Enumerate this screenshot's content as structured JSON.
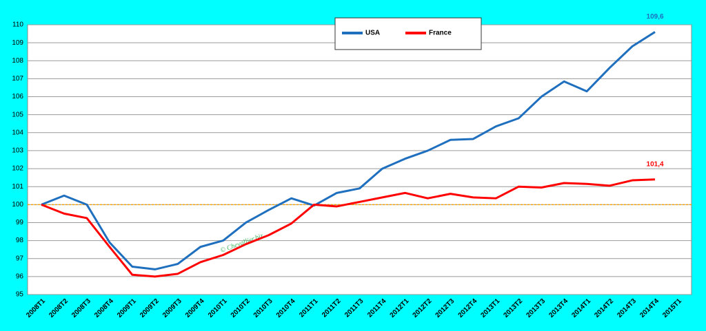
{
  "chart_data": {
    "type": "line",
    "categories": [
      "2008T1",
      "2008T2",
      "2008T3",
      "2008T4",
      "2009T1",
      "2009T2",
      "2009T3",
      "2009T4",
      "2010T1",
      "2010T2",
      "2010T3",
      "2010T4",
      "2011T1",
      "2011T2",
      "2011T3",
      "2011T4",
      "2012T1",
      "2012T2",
      "2012T3",
      "2012T4",
      "2013T1",
      "2013T2",
      "2013T3",
      "2013T4",
      "2014T1",
      "2014T2",
      "2014T3",
      "2014T4",
      "2015T1"
    ],
    "series": [
      {
        "name": "USA",
        "color": "#1f6fbf",
        "values": [
          100.0,
          100.5,
          100.0,
          97.9,
          96.55,
          96.4,
          96.7,
          97.65,
          98.0,
          99.0,
          99.7,
          100.35,
          99.95,
          100.65,
          100.9,
          102.0,
          102.55,
          103.0,
          103.6,
          103.65,
          104.35,
          104.8,
          106.0,
          106.85,
          106.3,
          107.6,
          108.8,
          109.6,
          null
        ],
        "value_labels": [
          null,
          null,
          null,
          null,
          null,
          null,
          null,
          null,
          null,
          null,
          null,
          null,
          null,
          null,
          null,
          null,
          null,
          null,
          null,
          null,
          null,
          null,
          null,
          null,
          null,
          null,
          null,
          "109,6",
          null
        ]
      },
      {
        "name": "France",
        "color": "#ff0000",
        "values": [
          100.0,
          99.5,
          99.25,
          97.65,
          96.1,
          96.0,
          96.15,
          96.8,
          97.2,
          97.8,
          98.3,
          98.95,
          100.0,
          99.9,
          100.15,
          100.4,
          100.65,
          100.35,
          100.6,
          100.4,
          100.35,
          101.0,
          100.95,
          101.2,
          101.15,
          101.05,
          101.35,
          101.4,
          null
        ],
        "value_labels": [
          null,
          null,
          null,
          null,
          null,
          null,
          null,
          null,
          null,
          null,
          null,
          null,
          null,
          null,
          null,
          null,
          null,
          null,
          null,
          null,
          null,
          null,
          null,
          null,
          null,
          null,
          null,
          "101,4",
          null
        ]
      }
    ],
    "ylim": [
      95,
      110
    ],
    "yticks": [
      95,
      96,
      97,
      98,
      99,
      100,
      101,
      102,
      103,
      104,
      105,
      106,
      107,
      108,
      109,
      110
    ],
    "grid": true,
    "reference_line": 100,
    "reference_color": "#ffa500",
    "legend": "top",
    "watermark": "© Chevallier.biz"
  }
}
